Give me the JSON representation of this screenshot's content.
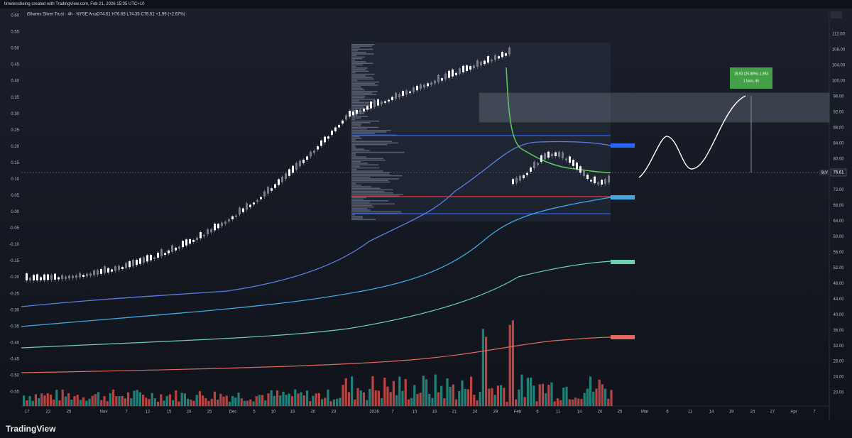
{
  "header": {
    "attribution": "timelessbeing created with TradingView.com, Feb 21, 2026 15:35 UTC+10"
  },
  "legend": {
    "symbol": "iShares Silver Trust · 4h · NYSE Arca",
    "ohlc": "O74.61 H76.68 L74.35 C76.61 +1.99 (+2.67%)"
  },
  "left_axis": [
    "0.60",
    "0.55",
    "0.50",
    "0.45",
    "0.40",
    "0.35",
    "0.30",
    "0.25",
    "0.20",
    "0.15",
    "0.10",
    "0.05",
    "0.00",
    "-0.05",
    "-0.10",
    "-0.15",
    "-0.20",
    "-0.25",
    "-0.30",
    "-0.35",
    "-0.40",
    "-0.45",
    "-0.50",
    "-0.55"
  ],
  "right_axis": [
    "112.00",
    "108.00",
    "104.00",
    "100.00",
    "96.00",
    "92.00",
    "88.00",
    "84.00",
    "80.00",
    "76.00",
    "72.00",
    "68.00",
    "64.00",
    "60.00",
    "56.00",
    "52.00",
    "48.00",
    "44.00",
    "40.00",
    "36.00",
    "32.00",
    "28.00",
    "24.00",
    "20.00"
  ],
  "time_axis": [
    "17",
    "22",
    "25",
    "Nov",
    "7",
    "12",
    "15",
    "20",
    "25",
    "Dec",
    "5",
    "10",
    "15",
    "20",
    "23",
    "2026",
    "7",
    "10",
    "15",
    "21",
    "24",
    "29",
    "Feb",
    "6",
    "11",
    "14",
    "20",
    "25",
    "Mar",
    "6",
    "11",
    "14",
    "19",
    "24",
    "27",
    "Apr",
    "7"
  ],
  "price_label": {
    "symbol": "SLV",
    "price": "76.61"
  },
  "measure": {
    "change": "19.93 (25.88%) 1,993",
    "bars": "1 bars, 4h"
  },
  "footer": {
    "brand": "TradingView"
  }
}
